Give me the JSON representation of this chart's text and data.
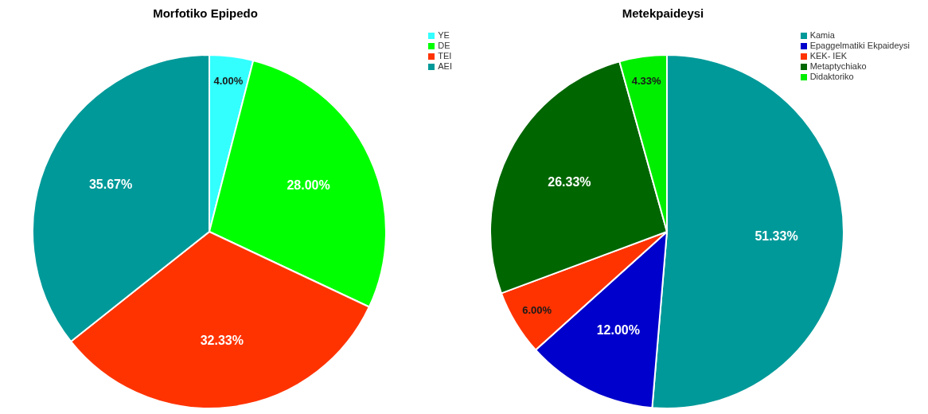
{
  "chart_data": [
    {
      "type": "pie",
      "title": "Morfotiko Epipedo",
      "categories": [
        "YE",
        "DE",
        "TEI",
        "AEI"
      ],
      "values": [
        4.0,
        28.0,
        32.33,
        35.67
      ],
      "colors": [
        "#33ffff",
        "#00ff00",
        "#ff3300",
        "#009999"
      ],
      "value_labels": [
        "4.00%",
        "28.00%",
        "32.33%",
        "35.67%"
      ],
      "legend": "top right"
    },
    {
      "type": "pie",
      "title": "Metekpaideysi",
      "categories": [
        "Kamia",
        "Epaggelmatiki Ekpaideysi",
        "KEK- IEK",
        "Metaptychiako",
        "Didaktoriko"
      ],
      "values": [
        51.33,
        12.0,
        6.0,
        26.33,
        4.33
      ],
      "colors": [
        "#009999",
        "#0000cc",
        "#ff3300",
        "#006600",
        "#00ee00"
      ],
      "value_labels": [
        "51.33%",
        "12.00%",
        "6.00%",
        "26.33%",
        "4.33%"
      ],
      "legend": "top right"
    }
  ]
}
